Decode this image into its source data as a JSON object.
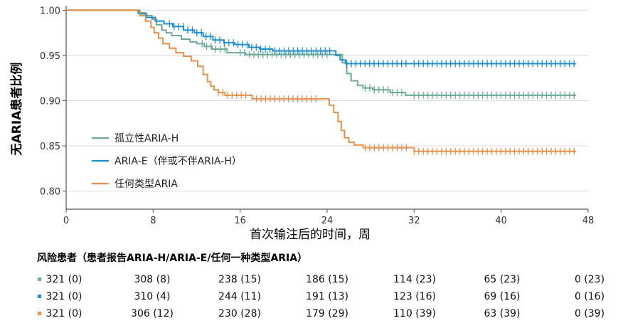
{
  "chart_data": {
    "type": "line",
    "xlabel": "首次输注后的时间，周",
    "ylabel": "无ARIA患者比例",
    "xlim": [
      0,
      48
    ],
    "ylim": [
      0.78,
      1.005
    ],
    "x_ticks": [
      0,
      8,
      16,
      24,
      32,
      40,
      48
    ],
    "y_ticks": [
      0.8,
      0.85,
      0.9,
      0.95,
      1.0
    ],
    "y_tick_labels": [
      "0.80",
      "0.85",
      "0.90",
      "0.95",
      "1.00"
    ],
    "grid": "horizontal",
    "legend_position": "lower-left",
    "series": [
      {
        "name": "孤立性ARIA-H",
        "color": "#6aaa96",
        "steps": [
          [
            0,
            1.0
          ],
          [
            6.6,
            0.997
          ],
          [
            7.3,
            0.994
          ],
          [
            7.9,
            0.99
          ],
          [
            8.3,
            0.984
          ],
          [
            8.8,
            0.978
          ],
          [
            9.2,
            0.975
          ],
          [
            9.7,
            0.972
          ],
          [
            10.6,
            0.968
          ],
          [
            11.4,
            0.965
          ],
          [
            12.0,
            0.963
          ],
          [
            12.7,
            0.96
          ],
          [
            13.4,
            0.957
          ],
          [
            14.8,
            0.953
          ],
          [
            16.5,
            0.951
          ],
          [
            21.5,
            0.951
          ],
          [
            25.4,
            0.942
          ],
          [
            25.8,
            0.93
          ],
          [
            26.2,
            0.922
          ],
          [
            26.8,
            0.917
          ],
          [
            27.3,
            0.914
          ],
          [
            28.2,
            0.912
          ],
          [
            29.8,
            0.909
          ],
          [
            31.2,
            0.906
          ],
          [
            46.9,
            0.906
          ]
        ],
        "censor_ranges": [
          [
            12.5,
            15.0
          ],
          [
            16.0,
            24.3
          ],
          [
            27.5,
            31.0
          ],
          [
            32.0,
            46.8
          ]
        ]
      },
      {
        "name": "ARIA-E（伴或不伴ARIA-H）",
        "color": "#1d8fd1",
        "steps": [
          [
            0,
            1.0
          ],
          [
            6.7,
            0.996
          ],
          [
            7.4,
            0.992
          ],
          [
            8.2,
            0.988
          ],
          [
            9.0,
            0.985
          ],
          [
            9.8,
            0.982
          ],
          [
            10.8,
            0.978
          ],
          [
            11.8,
            0.975
          ],
          [
            12.6,
            0.971
          ],
          [
            13.5,
            0.967
          ],
          [
            14.5,
            0.964
          ],
          [
            15.5,
            0.962
          ],
          [
            16.8,
            0.959
          ],
          [
            17.8,
            0.957
          ],
          [
            19.0,
            0.955
          ],
          [
            20.5,
            0.955
          ],
          [
            24.5,
            0.955
          ],
          [
            24.8,
            0.95
          ],
          [
            25.2,
            0.945
          ],
          [
            25.7,
            0.941
          ],
          [
            46.9,
            0.941
          ]
        ],
        "censor_ranges": [
          [
            9.5,
            19.0
          ],
          [
            19.2,
            24.5
          ],
          [
            25.8,
            31.5
          ],
          [
            32.0,
            46.8
          ]
        ]
      },
      {
        "name": "任何类型ARIA",
        "color": "#e8914a",
        "steps": [
          [
            0,
            1.0
          ],
          [
            6.8,
            0.994
          ],
          [
            7.3,
            0.988
          ],
          [
            7.8,
            0.981
          ],
          [
            8.1,
            0.975
          ],
          [
            8.5,
            0.969
          ],
          [
            8.9,
            0.963
          ],
          [
            9.5,
            0.958
          ],
          [
            10.1,
            0.953
          ],
          [
            10.8,
            0.949
          ],
          [
            11.5,
            0.944
          ],
          [
            12.1,
            0.938
          ],
          [
            12.6,
            0.929
          ],
          [
            13.0,
            0.921
          ],
          [
            13.3,
            0.916
          ],
          [
            13.6,
            0.912
          ],
          [
            14.0,
            0.909
          ],
          [
            14.6,
            0.906
          ],
          [
            15.5,
            0.906
          ],
          [
            16.5,
            0.906
          ],
          [
            17.1,
            0.902
          ],
          [
            18.5,
            0.902
          ],
          [
            23.5,
            0.902
          ],
          [
            24.2,
            0.895
          ],
          [
            24.6,
            0.887
          ],
          [
            25.0,
            0.877
          ],
          [
            25.3,
            0.867
          ],
          [
            25.6,
            0.859
          ],
          [
            26.0,
            0.854
          ],
          [
            26.5,
            0.851
          ],
          [
            27.3,
            0.848
          ],
          [
            31.5,
            0.848
          ],
          [
            32.0,
            0.844
          ],
          [
            46.9,
            0.844
          ]
        ],
        "censor_ranges": [
          [
            14.0,
            16.8
          ],
          [
            17.5,
            23.3
          ],
          [
            27.5,
            31.4
          ],
          [
            32.0,
            46.8
          ]
        ]
      }
    ],
    "risk_table": {
      "title": "风险患者（患者报告ARIA-H/ARIA-E/任何一种类型ARIA）",
      "rows": [
        {
          "color": "#6aaa96",
          "cells": [
            "321 (0)",
            "308 (8)",
            "238 (15)",
            "186 (15)",
            "114 (23)",
            "65 (23)",
            "0 (23)"
          ]
        },
        {
          "color": "#1d8fd1",
          "cells": [
            "321 (0)",
            "310 (4)",
            "244 (11)",
            "191 (13)",
            "123 (16)",
            "69 (16)",
            "0 (16)"
          ]
        },
        {
          "color": "#e8914a",
          "cells": [
            "321 (0)",
            "306 (12)",
            "230 (28)",
            "179 (29)",
            "110 (39)",
            "63 (39)",
            "0 (39)"
          ]
        }
      ]
    }
  }
}
